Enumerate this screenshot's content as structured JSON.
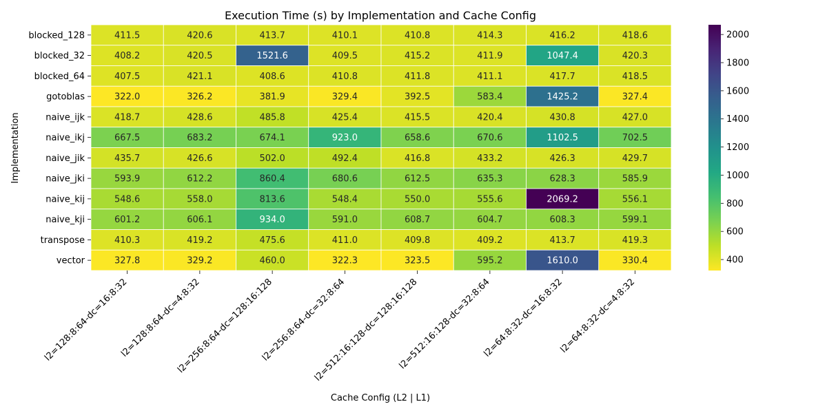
{
  "chart_data": {
    "type": "heatmap",
    "title": "Execution Time (s) by Implementation and Cache Config",
    "xlabel": "Cache Config (L2 | L1)",
    "ylabel": "Implementation",
    "colormap": "viridis_r",
    "color_range": [
      322.0,
      2069.2
    ],
    "colorbar_ticks": [
      400,
      600,
      800,
      1000,
      1200,
      1400,
      1600,
      1800,
      2000
    ],
    "x_categories": [
      "l2=128:8:64-dc=16:8:32",
      "l2=128:8:64-dc=4:8:32",
      "l2=256:8:64-dc=128:16:128",
      "l2=256:8:64-dc=32:8:64",
      "l2=512:16:128-dc=128:16:128",
      "l2=512:16:128-dc=32:8:64",
      "l2=64:8:32-dc=16:8:32",
      "l2=64:8:32-dc=4:8:32"
    ],
    "y_categories": [
      "blocked_128",
      "blocked_32",
      "blocked_64",
      "gotoblas",
      "naive_ijk",
      "naive_ikj",
      "naive_jik",
      "naive_jki",
      "naive_kij",
      "naive_kji",
      "transpose",
      "vector"
    ],
    "values": [
      [
        411.5,
        420.6,
        413.7,
        410.1,
        410.8,
        414.3,
        416.2,
        418.6
      ],
      [
        408.2,
        420.5,
        1521.6,
        409.5,
        415.2,
        411.9,
        1047.4,
        420.3
      ],
      [
        407.5,
        421.1,
        408.6,
        410.8,
        411.8,
        411.1,
        417.7,
        418.5
      ],
      [
        322.0,
        326.2,
        381.9,
        329.4,
        392.5,
        583.4,
        1425.2,
        327.4
      ],
      [
        418.7,
        428.6,
        485.8,
        425.4,
        415.5,
        420.4,
        430.8,
        427.0
      ],
      [
        667.5,
        683.2,
        674.1,
        923.0,
        658.6,
        670.6,
        1102.5,
        702.5
      ],
      [
        435.7,
        426.6,
        502.0,
        492.4,
        416.8,
        433.2,
        426.3,
        429.7
      ],
      [
        593.9,
        612.2,
        860.4,
        680.6,
        612.5,
        635.3,
        628.3,
        585.9
      ],
      [
        548.6,
        558.0,
        813.6,
        548.4,
        550.0,
        555.6,
        2069.2,
        556.1
      ],
      [
        601.2,
        606.1,
        934.0,
        591.0,
        608.7,
        604.7,
        608.3,
        599.1
      ],
      [
        410.3,
        419.2,
        475.6,
        411.0,
        409.8,
        409.2,
        413.7,
        419.3
      ],
      [
        327.8,
        329.2,
        460.0,
        322.3,
        323.5,
        595.2,
        1610.0,
        330.4
      ]
    ]
  }
}
